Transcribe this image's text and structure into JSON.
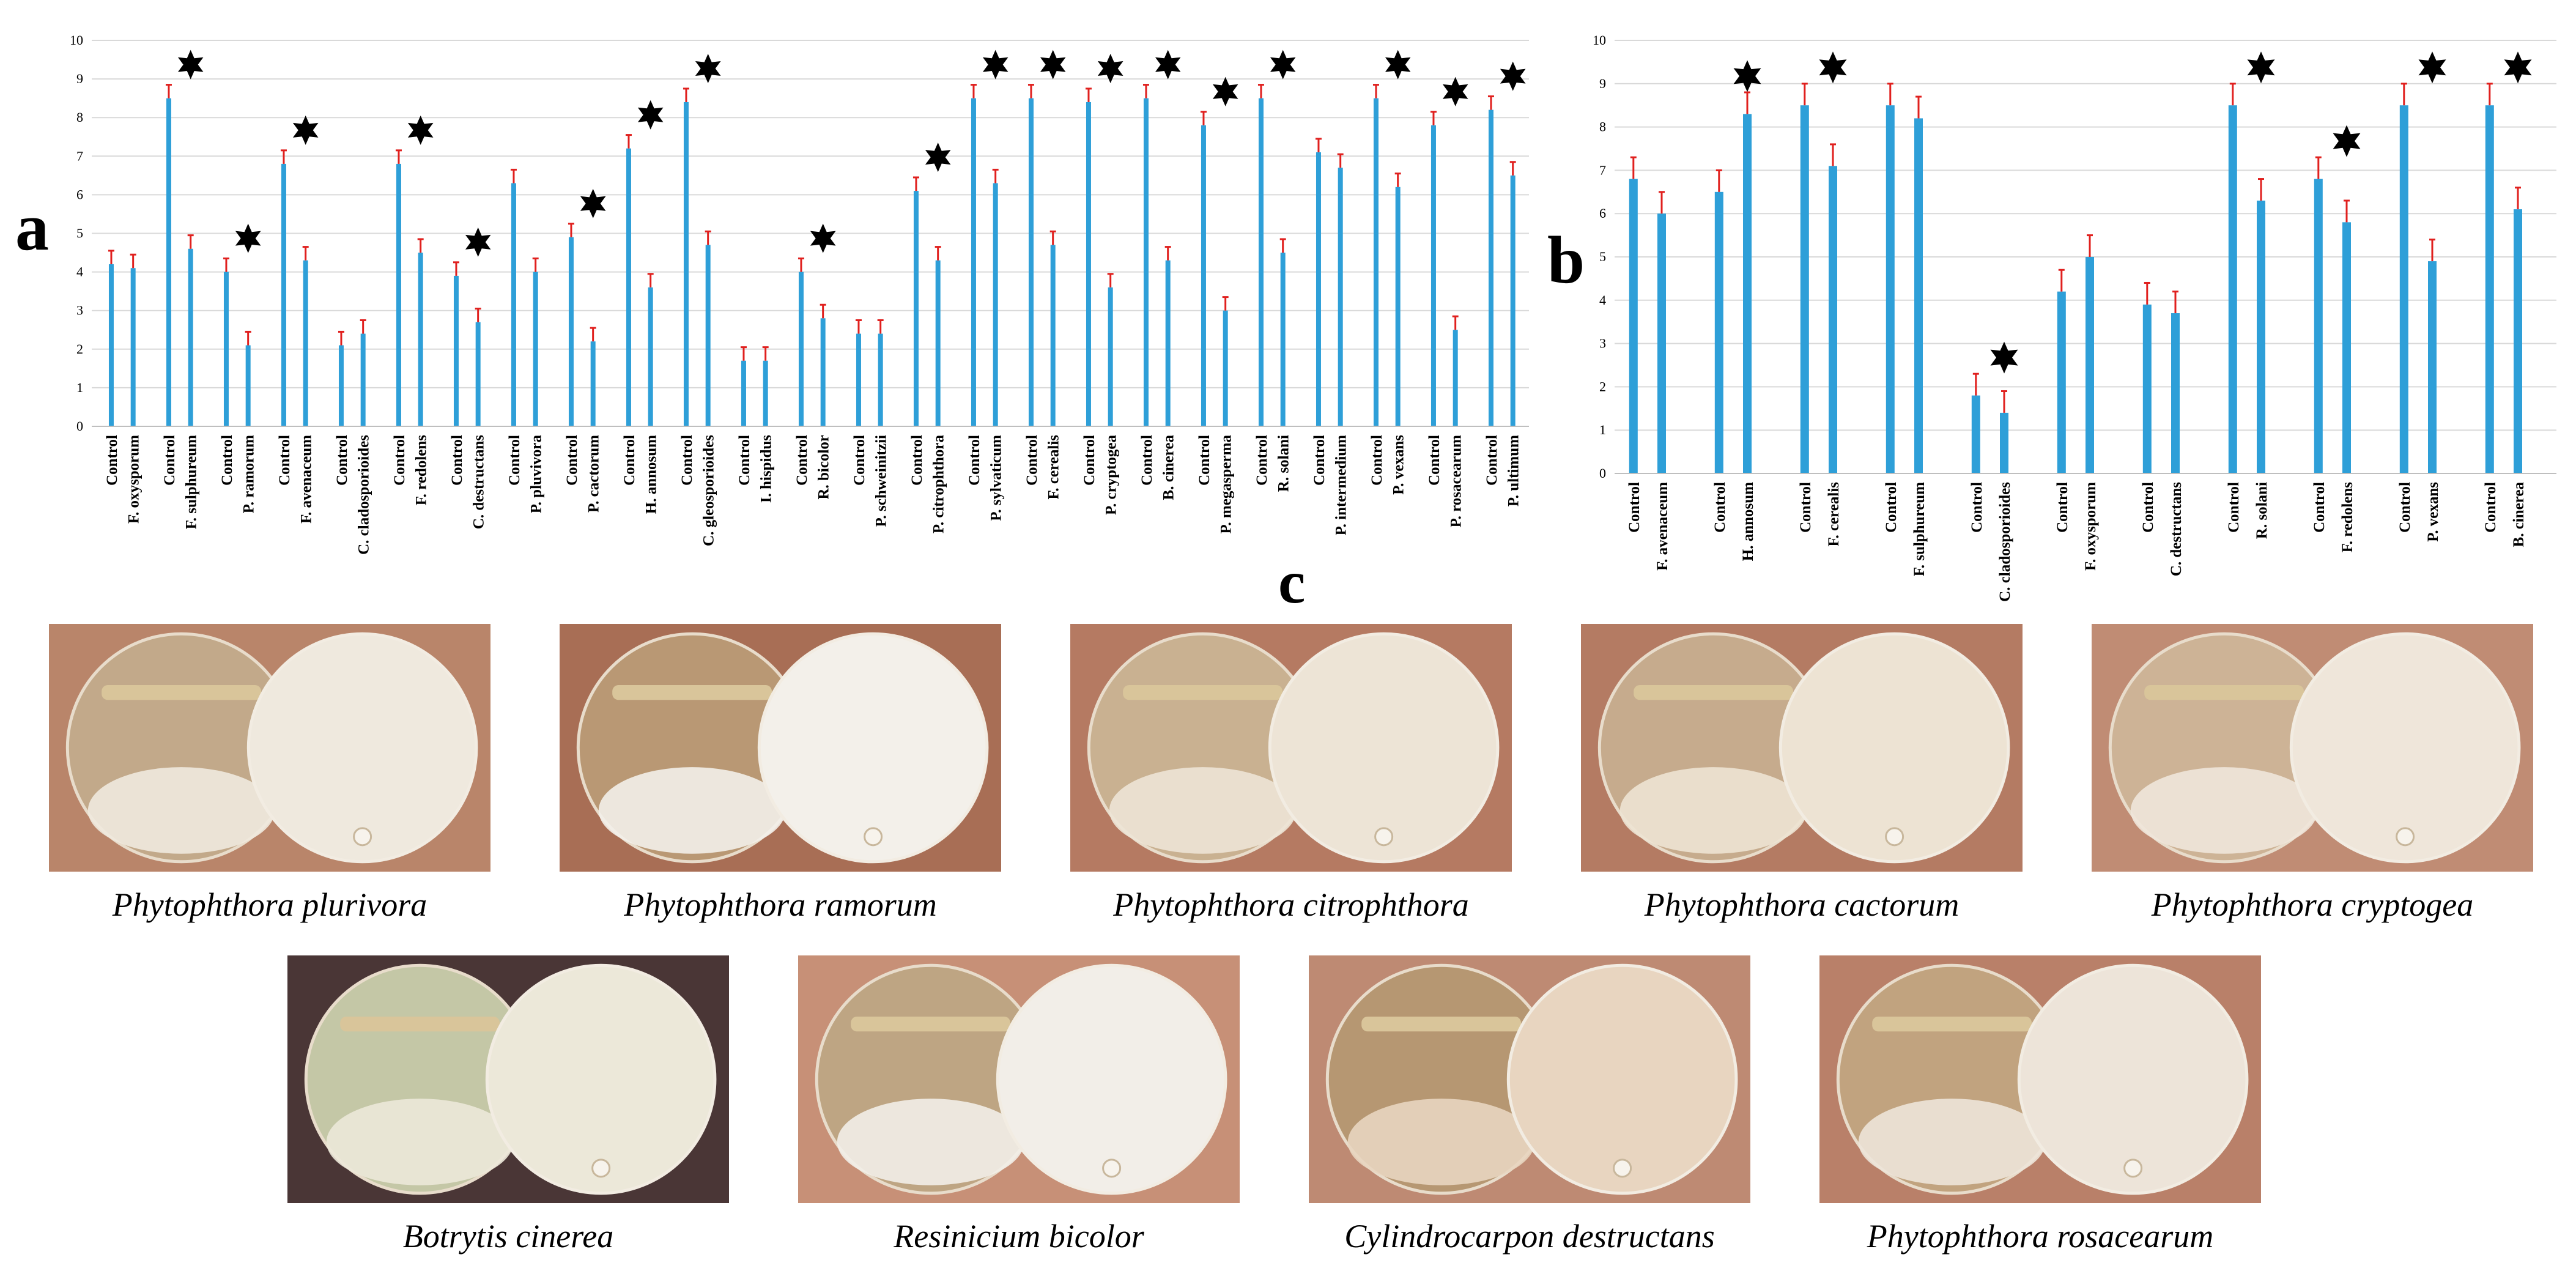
{
  "colors": {
    "bar": "#2e9fd8",
    "error": "#e0201e",
    "star": "#000000",
    "grid": "#d9d9d9"
  },
  "chart_data": [
    {
      "panel": "a",
      "type": "bar",
      "ylim": [
        0,
        10
      ],
      "yticks": [
        "0",
        "1",
        "2",
        "3",
        "4",
        "5",
        "6",
        "7",
        "8",
        "9",
        "10"
      ],
      "groups": [
        {
          "control": 4.2,
          "treat_label": "F. oxysporum",
          "treat": 4.1,
          "sig": false
        },
        {
          "control": 8.5,
          "treat_label": "F. sulphureum",
          "treat": 4.6,
          "sig": true
        },
        {
          "control": 4.0,
          "treat_label": "P. ramorum",
          "treat": 2.1,
          "sig": true
        },
        {
          "control": 6.8,
          "treat_label": "F. avenaceum",
          "treat": 4.3,
          "sig": true
        },
        {
          "control": 2.1,
          "treat_label": "C. cladosporioides",
          "treat": 2.4,
          "sig": false
        },
        {
          "control": 6.8,
          "treat_label": "F. redolens",
          "treat": 4.5,
          "sig": true
        },
        {
          "control": 3.9,
          "treat_label": "C. destructans",
          "treat": 2.7,
          "sig": true
        },
        {
          "control": 6.3,
          "treat_label": "P. pluvivora",
          "treat": 4.0,
          "sig": false
        },
        {
          "control": 4.9,
          "treat_label": "P. cactorum",
          "treat": 2.2,
          "sig": true
        },
        {
          "control": 7.2,
          "treat_label": "H. annosum",
          "treat": 3.6,
          "sig": true
        },
        {
          "control": 8.4,
          "treat_label": "C. gleosporioides",
          "treat": 4.7,
          "sig": true
        },
        {
          "control": 1.7,
          "treat_label": "I. hispidus",
          "treat": 1.7,
          "sig": false
        },
        {
          "control": 4.0,
          "treat_label": "R. bicolor",
          "treat": 2.8,
          "sig": true
        },
        {
          "control": 2.4,
          "treat_label": "P. schweinitzii",
          "treat": 2.4,
          "sig": false
        },
        {
          "control": 6.1,
          "treat_label": "P. citrophthora",
          "treat": 4.3,
          "sig": true
        },
        {
          "control": 8.5,
          "treat_label": "P. sylvaticum",
          "treat": 6.3,
          "sig": true
        },
        {
          "control": 8.5,
          "treat_label": "F. cerealis",
          "treat": 4.7,
          "sig": true
        },
        {
          "control": 8.4,
          "treat_label": "P. cryptogea",
          "treat": 3.6,
          "sig": true
        },
        {
          "control": 8.5,
          "treat_label": "B. cinerea",
          "treat": 4.3,
          "sig": true
        },
        {
          "control": 7.8,
          "treat_label": "P. megasperma",
          "treat": 3.0,
          "sig": true
        },
        {
          "control": 8.5,
          "treat_label": "R. solani",
          "treat": 4.5,
          "sig": true
        },
        {
          "control": 7.1,
          "treat_label": "P. intermedium",
          "treat": 6.7,
          "sig": false
        },
        {
          "control": 8.5,
          "treat_label": "P. vexans",
          "treat": 6.2,
          "sig": true
        },
        {
          "control": 7.8,
          "treat_label": "P. rosacearum",
          "treat": 2.5,
          "sig": true
        },
        {
          "control": 8.2,
          "treat_label": "P. ultimum",
          "treat": 6.5,
          "sig": true
        }
      ]
    },
    {
      "panel": "b",
      "type": "bar",
      "ylim": [
        0,
        10
      ],
      "yticks": [
        "0",
        "1",
        "2",
        "3",
        "4",
        "5",
        "6",
        "7",
        "8",
        "9",
        "10"
      ],
      "groups": [
        {
          "control": 6.8,
          "treat_label": "F. avenaceum",
          "treat": 6.0,
          "sig": false
        },
        {
          "control": 6.5,
          "treat_label": "H. annosum",
          "treat": 8.3,
          "sig": true
        },
        {
          "control": 8.5,
          "treat_label": "F. cerealis",
          "treat": 7.1,
          "sig": true
        },
        {
          "control": 8.5,
          "treat_label": "F. sulphureum",
          "treat": 8.2,
          "sig": false
        },
        {
          "control": 1.8,
          "treat_label": "C. cladosporioides",
          "treat": 1.4,
          "sig": true
        },
        {
          "control": 4.2,
          "treat_label": "F. oxysporum",
          "treat": 5.0,
          "sig": false
        },
        {
          "control": 3.9,
          "treat_label": "C. destructans",
          "treat": 3.7,
          "sig": false
        },
        {
          "control": 8.5,
          "treat_label": "R. solani",
          "treat": 6.3,
          "sig": true
        },
        {
          "control": 6.8,
          "treat_label": "F. redolens",
          "treat": 5.8,
          "sig": true
        },
        {
          "control": 8.5,
          "treat_label": "P. vexans",
          "treat": 4.9,
          "sig": true
        },
        {
          "control": 8.5,
          "treat_label": "B. cinerea",
          "treat": 6.1,
          "sig": true
        }
      ]
    }
  ],
  "control_label": "Control",
  "panel_labels": {
    "a": "a",
    "b": "b",
    "c": "c"
  },
  "panel_c": {
    "row1": [
      {
        "caption": "Phytophthora plurivora",
        "bg": "#b9856a",
        "agar": "#c2a98a",
        "growth": "#efe9de"
      },
      {
        "caption": "Phytophthora ramorum",
        "bg": "#a86e55",
        "agar": "#b99874",
        "growth": "#f3f0ea"
      },
      {
        "caption": "Phytophthora citrophthora",
        "bg": "#b57a62",
        "agar": "#c9b191",
        "growth": "#ede4d6"
      },
      {
        "caption": "Phytophthora cactorum",
        "bg": "#b47b63",
        "agar": "#c6ab8d",
        "growth": "#ede3d3"
      },
      {
        "caption": "Phytophthora cryptogea",
        "bg": "#c08c74",
        "agar": "#cdb396",
        "growth": "#efe6da"
      }
    ],
    "row2": [
      {
        "caption": "Botrytis cinerea",
        "bg": "#4a3636",
        "agar": "#c4c7a6",
        "growth": "#ece8d9"
      },
      {
        "caption": "Resinicium bicolor",
        "bg": "#c79077",
        "agar": "#bea583",
        "growth": "#f2eee8"
      },
      {
        "caption": "Cylindrocarpon destructans",
        "bg": "#be8a73",
        "agar": "#b69772",
        "growth": "#e8d5c0"
      },
      {
        "caption": "Phytophthora rosacearum",
        "bg": "#b98069",
        "agar": "#c1a37f",
        "growth": "#ede4d9"
      }
    ]
  }
}
